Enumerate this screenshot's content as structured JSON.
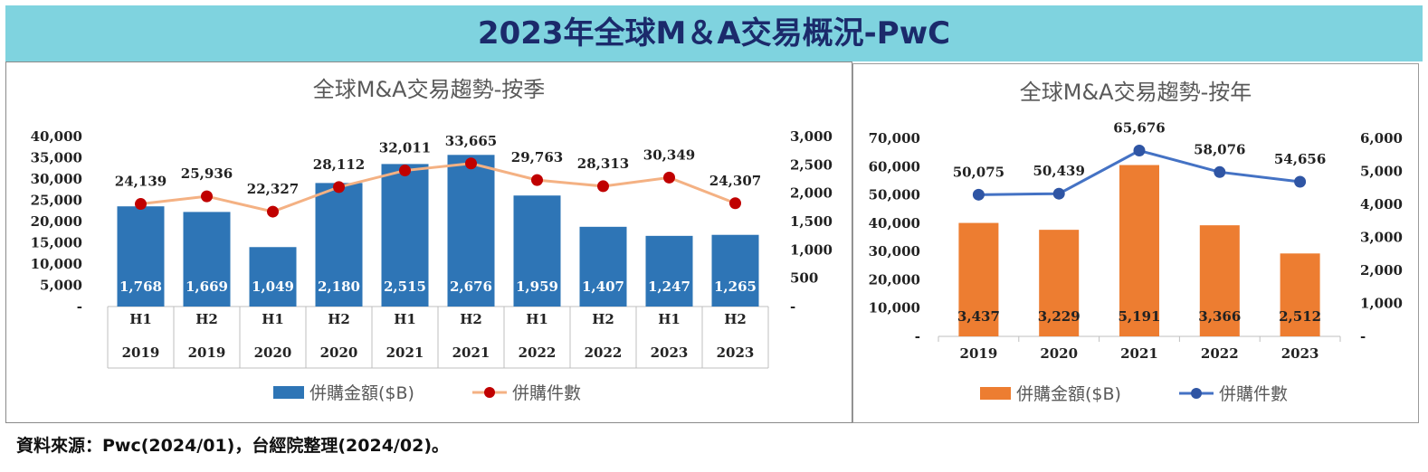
{
  "page_title": "2023年全球M＆A交易概況-PwC",
  "source_note": "資料來源：Pwc(2024/01)，台經院整理(2024/02)。",
  "chart_data": [
    {
      "type": "bar",
      "title": "全球M&A交易趨勢-按季",
      "categories": [
        [
          "H1",
          "2019"
        ],
        [
          "H2",
          "2019"
        ],
        [
          "H1",
          "2020"
        ],
        [
          "H2",
          "2020"
        ],
        [
          "H1",
          "2021"
        ],
        [
          "H2",
          "2021"
        ],
        [
          "H1",
          "2022"
        ],
        [
          "H2",
          "2022"
        ],
        [
          "H1",
          "2023"
        ],
        [
          "H2",
          "2023"
        ]
      ],
      "series": [
        {
          "name": "併購金額($B)",
          "kind": "bar",
          "axis": "right",
          "color": "#2e75b6",
          "values": [
            1768,
            1669,
            1049,
            2180,
            2515,
            2676,
            1959,
            1407,
            1247,
            1265
          ],
          "labels": [
            "1,768",
            "1,669",
            "1,049",
            "2,180",
            "2,515",
            "2,676",
            "1,959",
            "1,407",
            "1,247",
            "1,265"
          ]
        },
        {
          "name": "併購件數",
          "kind": "line",
          "axis": "left",
          "color": "#f4b183",
          "marker_color": "#c00000",
          "values": [
            24139,
            25936,
            22327,
            28112,
            32011,
            33665,
            29763,
            28313,
            30349,
            24307
          ],
          "labels": [
            "24,139",
            "25,936",
            "22,327",
            "28,112",
            "32,011",
            "33,665",
            "29,763",
            "28,313",
            "30,349",
            "24,307"
          ]
        }
      ],
      "y_left": {
        "ylim": [
          0,
          40000
        ],
        "tick_labels": [
          "-",
          "5,000",
          "10,000",
          "15,000",
          "20,000",
          "25,000",
          "30,000",
          "35,000",
          "40,000"
        ]
      },
      "y_right": {
        "ylim": [
          0,
          3000
        ],
        "tick_labels": [
          "-",
          "500",
          "1,000",
          "1,500",
          "2,000",
          "2,500",
          "3,000"
        ]
      },
      "legend": "bottom",
      "grid": false
    },
    {
      "type": "bar",
      "title": "全球M&A交易趨勢-按年",
      "categories": [
        [
          "2019"
        ],
        [
          "2020"
        ],
        [
          "2021"
        ],
        [
          "2022"
        ],
        [
          "2023"
        ]
      ],
      "series": [
        {
          "name": "併購金額($B)",
          "kind": "bar",
          "axis": "right",
          "color": "#ed7d31",
          "values": [
            3437,
            3229,
            5191,
            3366,
            2512
          ],
          "labels": [
            "3,437",
            "3,229",
            "5,191",
            "3,366",
            "2,512"
          ]
        },
        {
          "name": "併購件數",
          "kind": "line",
          "axis": "left",
          "color": "#4472c4",
          "marker_color": "#2f55a4",
          "values": [
            50075,
            50439,
            65676,
            58076,
            54656
          ],
          "labels": [
            "50,075",
            "50,439",
            "65,676",
            "58,076",
            "54,656"
          ]
        }
      ],
      "y_left": {
        "ylim": [
          0,
          70000
        ],
        "tick_labels": [
          "-",
          "10,000",
          "20,000",
          "30,000",
          "40,000",
          "50,000",
          "60,000",
          "70,000"
        ]
      },
      "y_right": {
        "ylim": [
          0,
          6000
        ],
        "tick_labels": [
          "-",
          "1,000",
          "2,000",
          "3,000",
          "4,000",
          "5,000",
          "6,000"
        ]
      },
      "legend": "bottom",
      "grid": false
    }
  ]
}
